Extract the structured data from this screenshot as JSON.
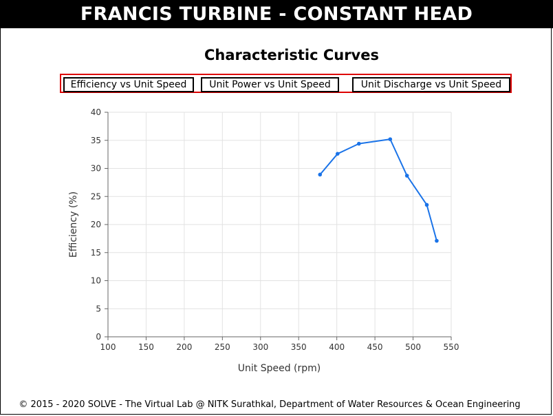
{
  "header": {
    "title": "FRANCIS TURBINE - CONSTANT HEAD"
  },
  "page": {
    "subtitle": "Characteristic Curves"
  },
  "buttons": [
    {
      "label": "Efficiency vs Unit Speed"
    },
    {
      "label": "Unit Power vs Unit Speed"
    },
    {
      "label": "Unit Discharge vs Unit Speed"
    }
  ],
  "colors": {
    "line": "#1a73e8",
    "highlight_border": "#dd0000",
    "header_bg": "#000000"
  },
  "chart_data": {
    "type": "line",
    "xlabel": "Unit Speed (rpm)",
    "ylabel": "Efficiency (%)",
    "xlim": [
      100,
      550
    ],
    "ylim": [
      0,
      40
    ],
    "xticks": [
      100,
      150,
      200,
      250,
      300,
      350,
      400,
      450,
      500,
      550
    ],
    "yticks": [
      0,
      5,
      10,
      15,
      20,
      25,
      30,
      35,
      40
    ],
    "grid": true,
    "series": [
      {
        "x": [
          378,
          401,
          429,
          470,
          492,
          518,
          531
        ],
        "y": [
          28.9,
          32.6,
          34.4,
          35.2,
          28.7,
          23.5,
          17.1
        ]
      }
    ]
  },
  "footer": {
    "text": "© 2015 - 2020 SOLVE - The Virtual Lab @ NITK Surathkal, Department of Water Resources & Ocean Engineering"
  }
}
